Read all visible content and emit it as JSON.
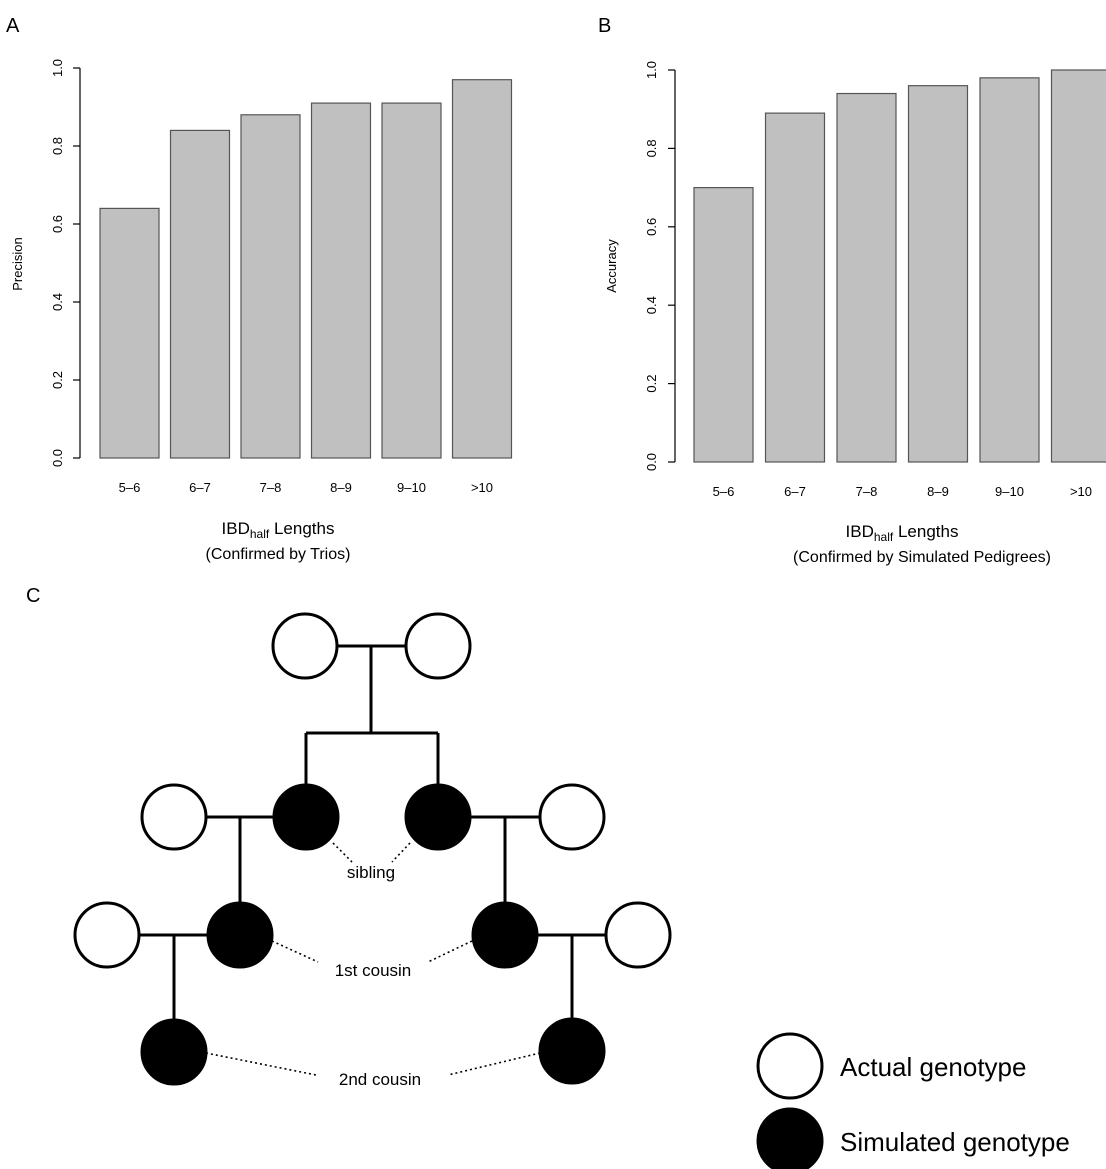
{
  "chart_data": [
    {
      "type": "bar",
      "panel_label": "A",
      "categories": [
        "5–6",
        "6–7",
        "7–8",
        "8–9",
        "9–10",
        ">10"
      ],
      "values": [
        0.64,
        0.84,
        0.88,
        0.91,
        0.91,
        0.97
      ],
      "ylabel": "Precision",
      "xlabel_main": "IBD",
      "xlabel_sub": "half",
      "xlabel_rest": " Lengths",
      "xlabel2": "(Confirmed by Trios)",
      "ylim": [
        0,
        1
      ],
      "yticks": [
        "0.0",
        "0.2",
        "0.4",
        "0.6",
        "0.8",
        "1.0"
      ],
      "bar_color": "#c0c0c0",
      "grid": false
    },
    {
      "type": "bar",
      "panel_label": "B",
      "categories": [
        "5–6",
        "6–7",
        "7–8",
        "8–9",
        "9–10",
        ">10"
      ],
      "values": [
        0.7,
        0.89,
        0.94,
        0.96,
        0.98,
        1.0
      ],
      "ylabel": "Accuracy",
      "xlabel_main": "IBD",
      "xlabel_sub": "half",
      "xlabel_rest": " Lengths",
      "xlabel2": "(Confirmed by Simulated Pedigrees)",
      "ylim": [
        0,
        1
      ],
      "yticks": [
        "0.0",
        "0.2",
        "0.4",
        "0.6",
        "0.8",
        "1.0"
      ],
      "bar_color": "#c0c0c0",
      "grid": false
    }
  ],
  "pedigree": {
    "panel_label": "C",
    "labels": {
      "sibling": "sibling",
      "first_cousin": "1st cousin",
      "second_cousin": "2nd cousin"
    },
    "legend": {
      "actual": "Actual genotype",
      "simulated": "Simulated genotype"
    },
    "colors": {
      "actual_fill": "#ffffff",
      "simulated_fill": "#000000"
    }
  }
}
